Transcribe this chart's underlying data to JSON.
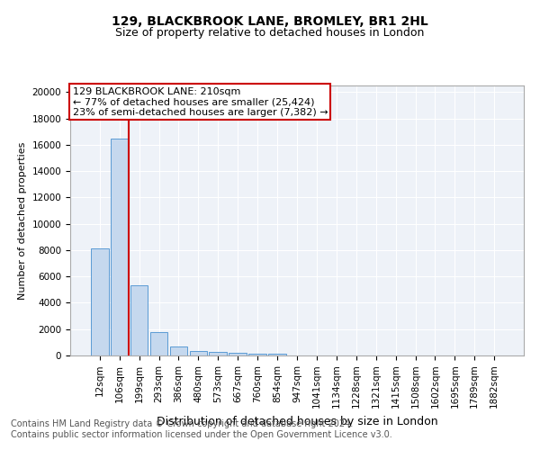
{
  "title1": "129, BLACKBROOK LANE, BROMLEY, BR1 2HL",
  "title2": "Size of property relative to detached houses in London",
  "xlabel": "Distribution of detached houses by size in London",
  "ylabel": "Number of detached properties",
  "bar_labels": [
    "12sqm",
    "106sqm",
    "199sqm",
    "293sqm",
    "386sqm",
    "480sqm",
    "573sqm",
    "667sqm",
    "760sqm",
    "854sqm",
    "947sqm",
    "1041sqm",
    "1134sqm",
    "1228sqm",
    "1321sqm",
    "1415sqm",
    "1508sqm",
    "1602sqm",
    "1695sqm",
    "1789sqm",
    "1882sqm"
  ],
  "bar_values": [
    8100,
    16500,
    5300,
    1750,
    700,
    350,
    270,
    200,
    170,
    150,
    0,
    0,
    0,
    0,
    0,
    0,
    0,
    0,
    0,
    0,
    0
  ],
  "bar_color": "#c5d8ee",
  "bar_edge_color": "#5b9bd5",
  "annotation_line1": "129 BLACKBROOK LANE: 210sqm",
  "annotation_line2": "← 77% of detached houses are smaller (25,424)",
  "annotation_line3": "23% of semi-detached houses are larger (7,382) →",
  "vline_color": "#cc0000",
  "annotation_box_color": "#cc0000",
  "ylim": [
    0,
    20500
  ],
  "yticks": [
    0,
    2000,
    4000,
    6000,
    8000,
    10000,
    12000,
    14000,
    16000,
    18000,
    20000
  ],
  "footer_line1": "Contains HM Land Registry data © Crown copyright and database right 2024.",
  "footer_line2": "Contains public sector information licensed under the Open Government Licence v3.0.",
  "plot_bg_color": "#eef2f8",
  "title1_fontsize": 10,
  "title2_fontsize": 9,
  "xlabel_fontsize": 9,
  "ylabel_fontsize": 8,
  "tick_fontsize": 7.5,
  "annotation_fontsize": 8,
  "footer_fontsize": 7
}
